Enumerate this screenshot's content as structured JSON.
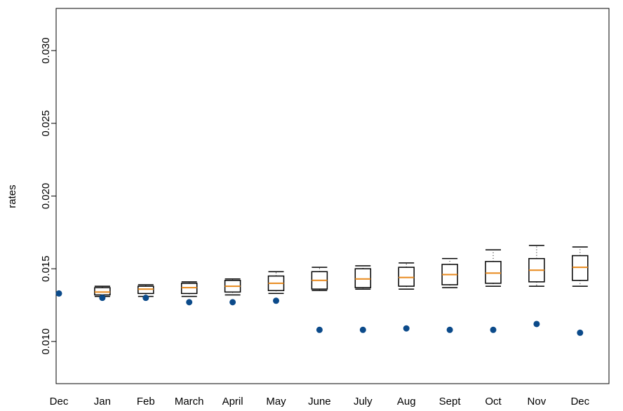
{
  "chart_data": {
    "type": "box",
    "ylabel": "rates",
    "categories": [
      "Dec",
      "Jan",
      "Feb",
      "March",
      "April",
      "May",
      "June",
      "July",
      "Aug",
      "Sept",
      "Oct",
      "Nov",
      "Dec"
    ],
    "box": {
      "color": "#000000",
      "median_color": "#e8891c",
      "low": [
        null,
        0.0131,
        0.0131,
        0.0131,
        0.0132,
        0.0133,
        0.0135,
        0.0136,
        0.0136,
        0.0137,
        0.0138,
        0.0138,
        0.0138
      ],
      "q1": [
        null,
        0.0132,
        0.0133,
        0.0133,
        0.0134,
        0.0135,
        0.0136,
        0.0137,
        0.0138,
        0.0139,
        0.014,
        0.0141,
        0.0142
      ],
      "median": [
        null,
        0.0134,
        0.0136,
        0.0137,
        0.0138,
        0.014,
        0.0142,
        0.0143,
        0.0144,
        0.0146,
        0.0147,
        0.0149,
        0.0151
      ],
      "q3": [
        null,
        0.0137,
        0.0138,
        0.014,
        0.0142,
        0.0145,
        0.0148,
        0.015,
        0.0151,
        0.0153,
        0.0155,
        0.0157,
        0.0159
      ],
      "high": [
        null,
        0.0138,
        0.0139,
        0.0141,
        0.0143,
        0.0148,
        0.0151,
        0.0152,
        0.0154,
        0.0157,
        0.0163,
        0.0166,
        0.0165
      ]
    },
    "points": {
      "color": "#0b4a8a",
      "values": [
        0.0133,
        0.013,
        0.013,
        0.0127,
        0.0127,
        0.0128,
        0.0108,
        0.0108,
        0.0109,
        0.0108,
        0.0108,
        0.0112,
        0.0106
      ]
    },
    "ylim": [
      0.0071,
      0.0329
    ],
    "yticks": [
      {
        "value": 0.01,
        "label": "0.010"
      },
      {
        "value": 0.015,
        "label": "0.015"
      },
      {
        "value": 0.02,
        "label": "0.020"
      },
      {
        "value": 0.025,
        "label": "0.025"
      },
      {
        "value": 0.03,
        "label": "0.030"
      }
    ]
  }
}
